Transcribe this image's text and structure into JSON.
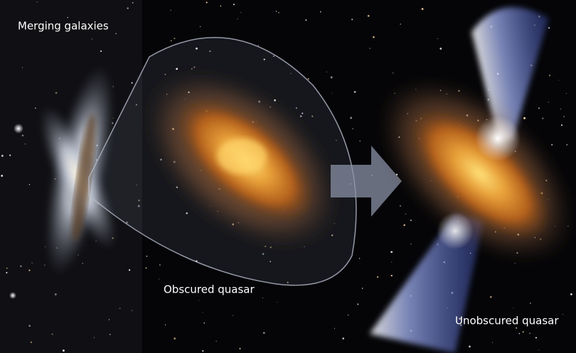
{
  "labels": {
    "merging": "Merging galaxies",
    "obscured": "Obscured quasar",
    "unobscured": "Unobscured quasar"
  }
}
